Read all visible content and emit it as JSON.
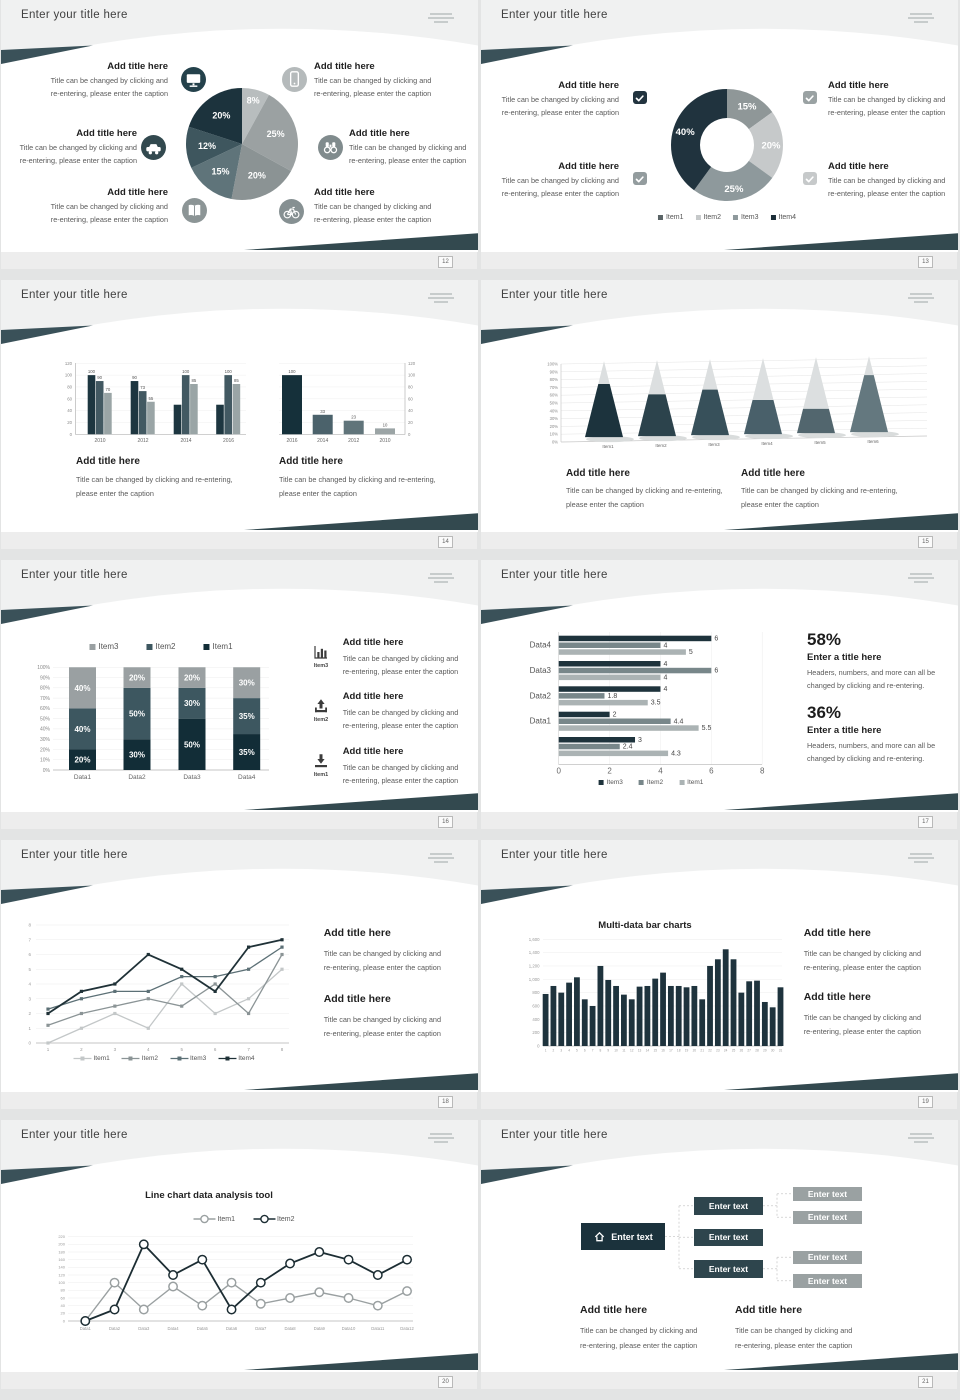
{
  "common": {
    "slide_title": "Enter your title here",
    "callout_title": "Add title here",
    "cap_a1": "Title can be changed by clicking and",
    "cap_a2": "re-entering, please enter the caption",
    "cap_b1": "Title can be changed by clicking and re-entering,",
    "cap_b2": "please enter the caption"
  },
  "slides": [
    {
      "page": "12",
      "chart_data": {
        "type": "pie",
        "labels": [
          "8%",
          "25%",
          "20%",
          "15%",
          "12%",
          "20%"
        ],
        "values": [
          8,
          25,
          20,
          15,
          12,
          20
        ],
        "colors": [
          "#b8bdbe",
          "#9ba1a2",
          "#8b9394",
          "#5f747a",
          "#3e565e",
          "#1c333d"
        ]
      },
      "callouts": [
        {
          "icon": "monitor",
          "icon_color": "#24414b"
        },
        {
          "icon": "car",
          "icon_color": "#32494f"
        },
        {
          "icon": "book",
          "icon_color": "#8c9596"
        },
        {
          "icon": "phone",
          "icon_color": "#b5babb"
        },
        {
          "icon": "binoculars",
          "icon_color": "#808b8d"
        },
        {
          "icon": "bicycle",
          "icon_color": "#869092"
        }
      ]
    },
    {
      "page": "13",
      "chart_data": {
        "type": "pie",
        "donut": true,
        "labels": [
          "15%",
          "20%",
          "25%",
          "40%"
        ],
        "values": [
          15,
          20,
          25,
          40
        ],
        "colors": [
          "#8f9798",
          "#c6c9ca",
          "#8e999c",
          "#20333e"
        ],
        "legend": [
          {
            "label": "Item1",
            "color": "#5a6466"
          },
          {
            "label": "Item2",
            "color": "#c6c9ca"
          },
          {
            "label": "Item3",
            "color": "#8e999c"
          },
          {
            "label": "Item4",
            "color": "#1c2e38"
          }
        ]
      },
      "checkbox_colors": [
        "#22343f",
        "#939c9e",
        "#9aa2a3",
        "#c6c9ca"
      ]
    },
    {
      "page": "14",
      "chart_data": [
        {
          "type": "bar",
          "categories": [
            "2010",
            "2012",
            "2014",
            "2016"
          ],
          "ylim": [
            0,
            120
          ],
          "yticks": [
            "0",
            "20",
            "40",
            "60",
            "80",
            "100",
            "120"
          ],
          "series": [
            {
              "values": [
                100,
                90,
                50,
                50
              ],
              "color": "#1d3640",
              "labels": [
                "100",
                "90",
                "",
                ""
              ]
            },
            {
              "values": [
                90,
                73,
                100,
                100
              ],
              "color": "#425962",
              "labels": [
                "90",
                "73",
                "100",
                "100"
              ]
            },
            {
              "values": [
                70,
                55,
                85,
                85
              ],
              "color": "#9aa5a6",
              "labels": [
                "70",
                "55",
                "85",
                "85"
              ]
            }
          ]
        },
        {
          "type": "bar",
          "categories": [
            "2016",
            "2014",
            "2012",
            "2010"
          ],
          "ylim": [
            0,
            120
          ],
          "yticks": [
            "0",
            "20",
            "40",
            "60",
            "80",
            "100",
            "120"
          ],
          "values": [
            100,
            33,
            23,
            10
          ],
          "labels": [
            "100",
            "33",
            "23",
            "10"
          ],
          "colors": [
            "#15303a",
            "#4b626b",
            "#60747a",
            "#9ba4a5"
          ]
        }
      ]
    },
    {
      "page": "15",
      "chart_data": {
        "type": "bar",
        "style": "cone",
        "categories": [
          "Item1",
          "Item2",
          "Item3",
          "Item4",
          "Item5",
          "Item6"
        ],
        "values": [
          70,
          55,
          60,
          45,
          32,
          75
        ],
        "ylim": [
          0,
          100
        ],
        "yticks": [
          "0%",
          "10%",
          "20%",
          "30%",
          "40%",
          "50%",
          "60%",
          "70%",
          "80%",
          "90%",
          "100%"
        ],
        "colors": [
          "#1c333d",
          "#2c434c",
          "#37505a",
          "#49606a",
          "#52666e",
          "#64787f"
        ],
        "tip_color": "#dcdfe0"
      }
    },
    {
      "page": "16",
      "chart_data": {
        "type": "bar",
        "stacked": true,
        "categories": [
          "Data1",
          "Data2",
          "Data3",
          "Data4"
        ],
        "yticks": [
          "0%",
          "10%",
          "20%",
          "30%",
          "40%",
          "50%",
          "60%",
          "70%",
          "80%",
          "90%",
          "100%"
        ],
        "series": [
          {
            "name": "Item1",
            "color": "#122d37",
            "values": [
              20,
              30,
              50,
              35
            ]
          },
          {
            "name": "Item2",
            "color": "#3d5760",
            "values": [
              40,
              50,
              30,
              35
            ]
          },
          {
            "name": "Item3",
            "color": "#9aa0a2",
            "values": [
              40,
              20,
              20,
              30
            ]
          }
        ],
        "legend": [
          {
            "label": "Item3",
            "color": "#9aa0a2"
          },
          {
            "label": "Item2",
            "color": "#3d5760"
          },
          {
            "label": "Item1",
            "color": "#122d37"
          }
        ]
      },
      "rows": [
        {
          "icon": "chart",
          "label": "Item3"
        },
        {
          "icon": "upload",
          "label": "Item2"
        },
        {
          "icon": "download",
          "label": "Item1"
        }
      ]
    },
    {
      "page": "17",
      "chart_data": {
        "type": "bar",
        "orientation": "horizontal",
        "xlim": [
          0,
          8
        ],
        "xticks": [
          "0",
          "2",
          "4",
          "6",
          "8"
        ],
        "series_names": [
          "Item3",
          "Item2",
          "Item1"
        ],
        "series_colors": [
          "#1e333c",
          "#78878a",
          "#abb3b4"
        ],
        "groups": [
          {
            "label": "Data4",
            "values": [
              6,
              4,
              5
            ],
            "labels": [
              "6",
              "4",
              "5"
            ]
          },
          {
            "label": "Data3",
            "values": [
              4,
              6,
              4
            ],
            "labels": [
              "4",
              "6",
              "4"
            ]
          },
          {
            "label": "Data2",
            "values": [
              4,
              1.8,
              3.5
            ],
            "labels": [
              "4",
              "1.8",
              "3.5"
            ]
          },
          {
            "label": "Data1",
            "values": [
              2,
              4.4,
              5.5
            ],
            "labels": [
              "2",
              "4.4",
              "5.5"
            ]
          },
          {
            "label": "",
            "values": [
              3,
              2.4,
              4.3
            ],
            "labels": [
              "3",
              "2.4",
              "4.3"
            ]
          }
        ]
      },
      "stats": [
        {
          "value": "58%",
          "title": "Enter a title here",
          "cap1": "Headers, numbers, and more can all be",
          "cap2": "changed by clicking and re-entering."
        },
        {
          "value": "36%",
          "title": "Enter a title here",
          "cap1": "Headers, numbers, and more can all be",
          "cap2": "changed by clicking and re-entering."
        }
      ]
    },
    {
      "page": "18",
      "chart_data": {
        "type": "line",
        "x": [
          "1",
          "2",
          "3",
          "4",
          "5",
          "6",
          "7",
          "8"
        ],
        "ylim": [
          0,
          8
        ],
        "yticks": [
          "0",
          "1",
          "2",
          "3",
          "4",
          "5",
          "6",
          "7",
          "8"
        ],
        "series": [
          {
            "name": "Item1",
            "color": "#c3c7c8",
            "values": [
              0,
              1,
              2,
              1,
              4,
              2,
              3,
              5
            ]
          },
          {
            "name": "Item2",
            "color": "#8b9496",
            "values": [
              1.2,
              2,
              2.5,
              3,
              2.5,
              4,
              2,
              6
            ]
          },
          {
            "name": "Item3",
            "color": "#5c7076",
            "values": [
              2.3,
              3,
              3.5,
              3.5,
              4.5,
              4.5,
              5,
              6.5
            ]
          },
          {
            "name": "Item4",
            "color": "#1f3137",
            "values": [
              2,
              3.5,
              4,
              6,
              5,
              3.5,
              6.5,
              7
            ]
          }
        ]
      }
    },
    {
      "page": "19",
      "title": "Multi-data bar charts",
      "chart_data": {
        "type": "bar",
        "color": "#1e333d",
        "ylim": [
          0,
          1600
        ],
        "yticks": [
          "0",
          "200",
          "400",
          "600",
          "800",
          "1,000",
          "1,200",
          "1,400",
          "1,600"
        ],
        "x": [
          "1",
          "2",
          "3",
          "4",
          "5",
          "6",
          "7",
          "8",
          "9",
          "10",
          "11",
          "12",
          "13",
          "14",
          "15",
          "16",
          "17",
          "18",
          "19",
          "20",
          "21",
          "22",
          "23",
          "24",
          "25",
          "26",
          "27",
          "28",
          "29",
          "30",
          "31"
        ],
        "values": [
          780,
          900,
          800,
          950,
          1030,
          700,
          600,
          1200,
          990,
          900,
          770,
          700,
          890,
          900,
          1010,
          1100,
          900,
          900,
          880,
          900,
          700,
          1200,
          1300,
          1450,
          1300,
          800,
          970,
          980,
          660,
          580,
          880
        ]
      }
    },
    {
      "page": "20",
      "title": "Line chart data analysis tool",
      "chart_data": {
        "type": "line",
        "x": [
          "Data1",
          "Data2",
          "Data3",
          "Data4",
          "Data5",
          "Data6",
          "Data7",
          "Data8",
          "Data9",
          "Data10",
          "Data11",
          "Data12"
        ],
        "ylim": [
          0,
          220
        ],
        "yticks": [
          "0",
          "20",
          "40",
          "60",
          "80",
          "100",
          "120",
          "140",
          "160",
          "180",
          "200",
          "220"
        ],
        "series": [
          {
            "name": "Item1",
            "color": "#9aa0a1",
            "values": [
              0,
              100,
              30,
              90,
              40,
              100,
              45,
              60,
              75,
              60,
              40,
              78
            ]
          },
          {
            "name": "Item2",
            "color": "#1c2d33",
            "values": [
              0,
              30,
              200,
              120,
              160,
              30,
              100,
              150,
              180,
              160,
              120,
              160
            ]
          }
        ]
      }
    },
    {
      "page": "21",
      "diagram": {
        "root": "Enter text",
        "mids": [
          "Enter text",
          "Enter text",
          "Enter text"
        ],
        "leaves": [
          "Enter text",
          "Enter text",
          "Enter text",
          "Enter text"
        ]
      }
    }
  ]
}
